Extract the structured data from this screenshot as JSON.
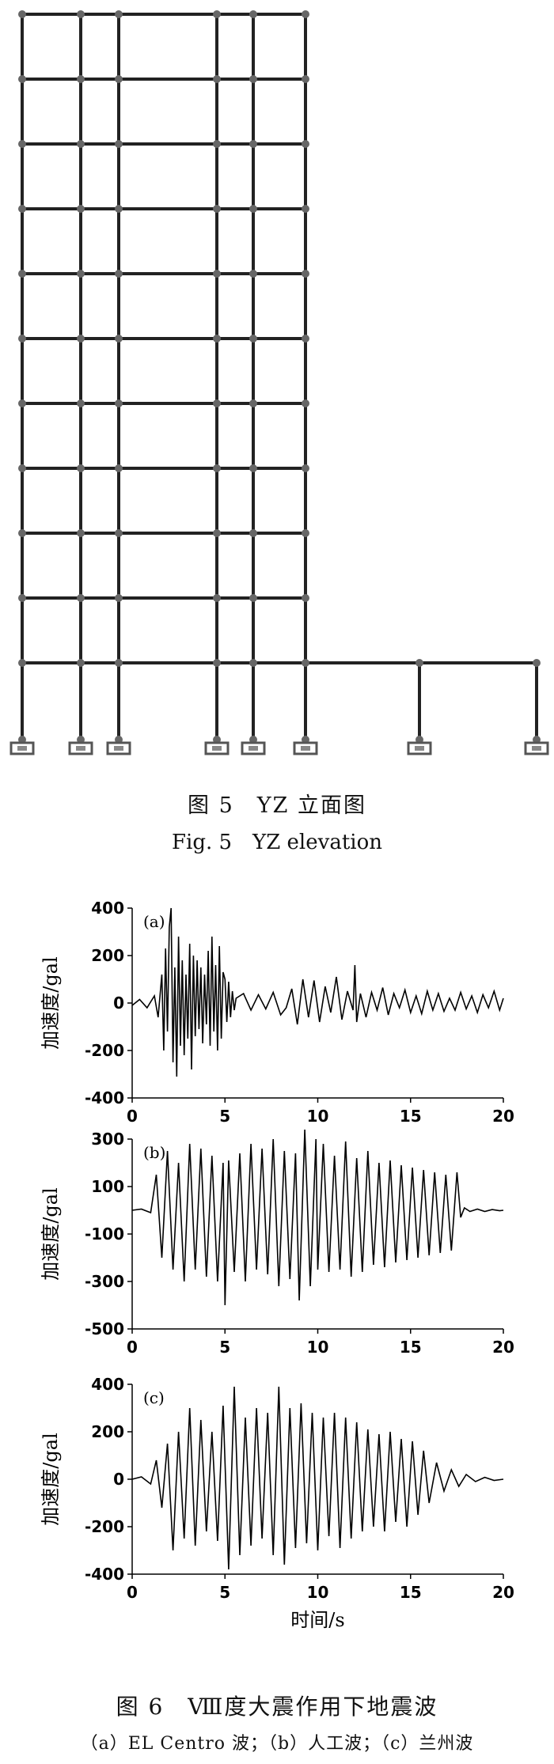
{
  "figure5": {
    "caption_cn": "图 5　YZ 立面图",
    "caption_en": "Fig. 5　YZ elevation"
  },
  "figure6": {
    "caption_cn": "图 6　Ⅷ度大震作用下地震波",
    "subcaption": "（a）EL Centro 波；（b）人工波；（c）兰州波"
  },
  "chart_data": [
    {
      "type": "line",
      "panel_label": "(a)",
      "xlabel": "",
      "ylabel": "加速度/gal",
      "xlim": [
        0,
        20
      ],
      "ylim": [
        -400,
        400
      ],
      "xticks": [
        0,
        5,
        10,
        15,
        20
      ],
      "yticks": [
        400,
        200,
        0,
        -200,
        -400
      ],
      "grid": false,
      "x": [
        0.0,
        0.4,
        0.8,
        1.0,
        1.2,
        1.4,
        1.6,
        1.7,
        1.8,
        1.9,
        2.0,
        2.1,
        2.2,
        2.3,
        2.4,
        2.5,
        2.6,
        2.7,
        2.8,
        2.9,
        3.0,
        3.1,
        3.2,
        3.3,
        3.4,
        3.5,
        3.6,
        3.7,
        3.8,
        3.9,
        4.0,
        4.1,
        4.2,
        4.3,
        4.4,
        4.5,
        4.6,
        4.7,
        4.8,
        4.9,
        5.0,
        5.1,
        5.2,
        5.3,
        5.4,
        5.5,
        5.6,
        6.0,
        6.4,
        6.8,
        7.2,
        7.6,
        8.0,
        8.3,
        8.6,
        8.9,
        9.2,
        9.5,
        9.8,
        10.1,
        10.4,
        10.7,
        11.0,
        11.3,
        11.6,
        11.9,
        12.0,
        12.1,
        12.3,
        12.6,
        12.9,
        13.2,
        13.5,
        13.8,
        14.1,
        14.4,
        14.7,
        15.0,
        15.3,
        15.6,
        15.9,
        16.2,
        16.5,
        16.8,
        17.1,
        17.4,
        17.7,
        18.0,
        18.3,
        18.6,
        18.9,
        19.2,
        19.5,
        19.8,
        20.0
      ],
      "y": [
        -10,
        15,
        -20,
        5,
        30,
        -60,
        120,
        -200,
        230,
        -120,
        320,
        400,
        -250,
        150,
        -310,
        280,
        -180,
        180,
        -220,
        120,
        -150,
        250,
        -280,
        200,
        -140,
        180,
        -110,
        150,
        -170,
        120,
        -90,
        220,
        -180,
        280,
        -120,
        160,
        -200,
        240,
        -150,
        130,
        100,
        -80,
        90,
        -60,
        50,
        -30,
        20,
        40,
        -30,
        35,
        -25,
        45,
        -50,
        -20,
        60,
        -90,
        100,
        -60,
        95,
        -80,
        70,
        -40,
        110,
        -70,
        50,
        -30,
        160,
        -80,
        40,
        -60,
        45,
        -30,
        65,
        -50,
        40,
        -20,
        55,
        -40,
        30,
        -45,
        50,
        -30,
        40,
        -35,
        20,
        -30,
        45,
        -25,
        30,
        -40,
        35,
        -20,
        50,
        -30,
        20
      ]
    },
    {
      "type": "line",
      "panel_label": "(b)",
      "xlabel": "",
      "ylabel": "加速度/gal",
      "xlim": [
        0,
        20
      ],
      "ylim": [
        -500,
        300
      ],
      "xticks": [
        0,
        5,
        10,
        15,
        20
      ],
      "yticks": [
        300,
        100,
        -100,
        -300,
        -500
      ],
      "grid": false,
      "x": [
        0.0,
        0.5,
        1.0,
        1.3,
        1.6,
        1.9,
        2.2,
        2.5,
        2.8,
        3.1,
        3.4,
        3.7,
        4.0,
        4.3,
        4.6,
        4.9,
        5.0,
        5.2,
        5.5,
        5.8,
        6.1,
        6.4,
        6.7,
        7.0,
        7.3,
        7.6,
        7.9,
        8.2,
        8.5,
        8.8,
        9.0,
        9.3,
        9.6,
        9.9,
        10.0,
        10.3,
        10.6,
        10.9,
        11.2,
        11.5,
        11.8,
        12.1,
        12.4,
        12.7,
        13.0,
        13.3,
        13.6,
        13.9,
        14.2,
        14.5,
        14.8,
        15.1,
        15.4,
        15.7,
        16.0,
        16.3,
        16.6,
        16.9,
        17.2,
        17.5,
        17.7,
        17.9,
        18.2,
        18.6,
        19.0,
        19.4,
        19.8,
        20.0
      ],
      "y": [
        0,
        5,
        -10,
        150,
        -200,
        250,
        -250,
        200,
        -300,
        280,
        -250,
        260,
        -280,
        230,
        -300,
        200,
        -400,
        210,
        -260,
        240,
        -300,
        280,
        -250,
        260,
        -270,
        300,
        -320,
        250,
        -290,
        240,
        -380,
        340,
        -320,
        300,
        -250,
        280,
        -260,
        230,
        -250,
        290,
        -280,
        220,
        -260,
        250,
        -230,
        200,
        -240,
        210,
        -220,
        190,
        -210,
        180,
        -200,
        170,
        -190,
        160,
        -180,
        150,
        -170,
        160,
        -30,
        10,
        -5,
        5,
        -5,
        3,
        -2,
        0
      ]
    },
    {
      "type": "line",
      "panel_label": "(c)",
      "xlabel": "时间/s",
      "ylabel": "加速度/gal",
      "xlim": [
        0,
        20
      ],
      "ylim": [
        -400,
        400
      ],
      "xticks": [
        0,
        5,
        10,
        15,
        20
      ],
      "yticks": [
        400,
        200,
        0,
        -200,
        -400
      ],
      "grid": false,
      "x": [
        0.0,
        0.5,
        1.0,
        1.3,
        1.6,
        1.9,
        2.2,
        2.5,
        2.8,
        3.1,
        3.4,
        3.7,
        4.0,
        4.3,
        4.6,
        4.9,
        5.2,
        5.5,
        5.8,
        6.1,
        6.4,
        6.7,
        7.0,
        7.3,
        7.6,
        7.9,
        8.2,
        8.5,
        8.8,
        9.1,
        9.4,
        9.7,
        10.0,
        10.3,
        10.6,
        10.9,
        11.2,
        11.5,
        11.8,
        12.1,
        12.4,
        12.7,
        13.0,
        13.3,
        13.6,
        13.9,
        14.2,
        14.5,
        14.8,
        15.1,
        15.4,
        15.7,
        16.0,
        16.4,
        16.8,
        17.2,
        17.6,
        18.0,
        18.5,
        19.0,
        19.5,
        20.0
      ],
      "y": [
        0,
        10,
        -20,
        80,
        -120,
        150,
        -300,
        200,
        -250,
        300,
        -280,
        250,
        -220,
        200,
        -260,
        310,
        -380,
        390,
        -320,
        260,
        -280,
        300,
        -250,
        280,
        -320,
        390,
        -360,
        300,
        -290,
        320,
        -270,
        280,
        -300,
        260,
        -240,
        280,
        -290,
        260,
        -250,
        240,
        -220,
        210,
        -200,
        190,
        -220,
        200,
        -180,
        170,
        -200,
        160,
        -150,
        120,
        -100,
        70,
        -50,
        40,
        -30,
        20,
        -10,
        8,
        -5,
        0
      ]
    }
  ]
}
